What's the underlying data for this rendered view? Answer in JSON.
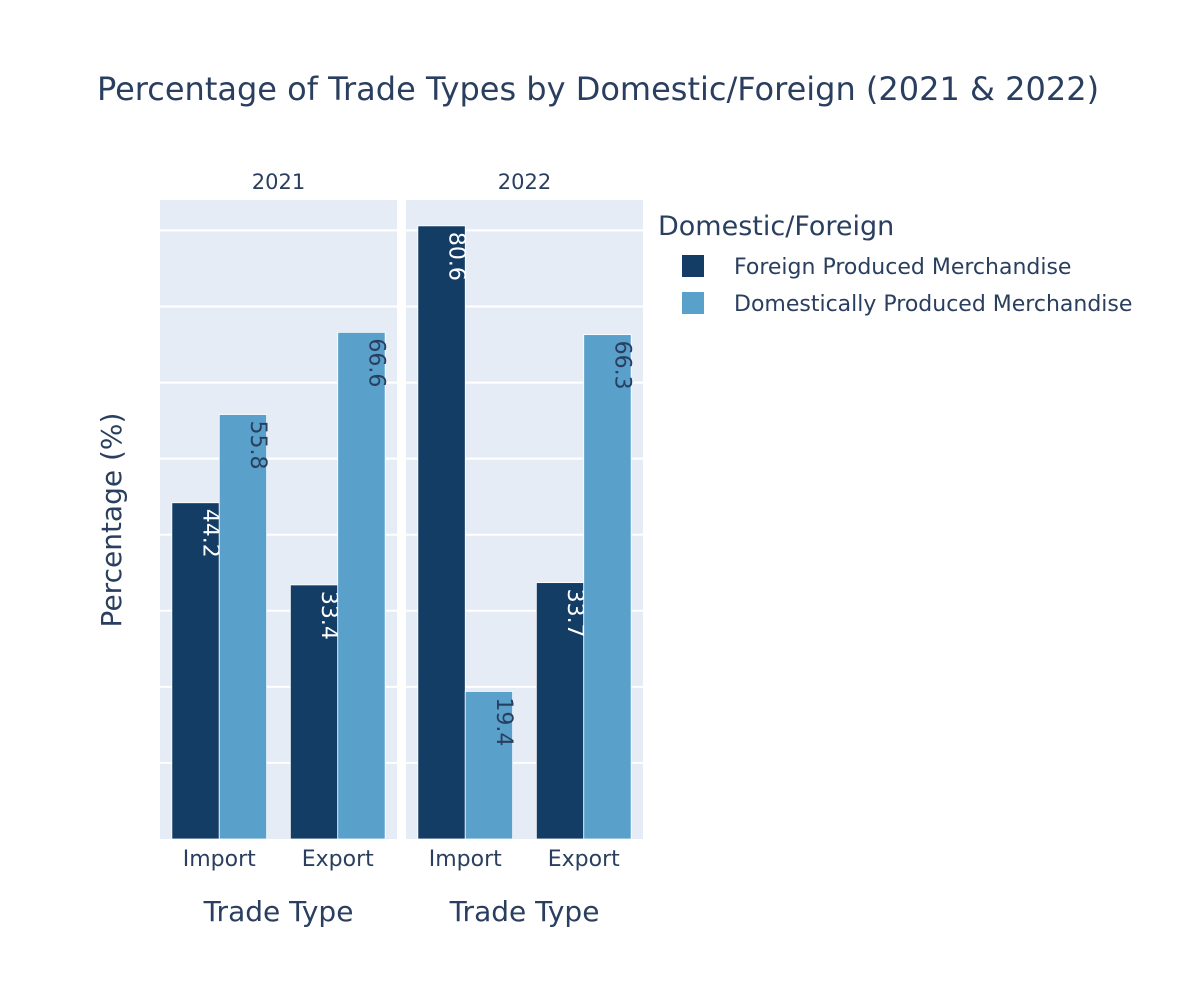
{
  "chart_data": {
    "type": "bar",
    "title": "Percentage of Trade Types by Domestic/Foreign (2021 & 2022)",
    "ylabel": "Percentage (%)",
    "ylim": [
      0,
      84
    ],
    "grid": true,
    "legend": {
      "title": "Domestic/Foreign",
      "placement": "top-right"
    },
    "facets": [
      {
        "name": "2021",
        "xlabel": "Trade Type",
        "categories": [
          "Import",
          "Export"
        ],
        "series": [
          {
            "name": "Foreign Produced Merchandise",
            "values": [
              44.2,
              33.4
            ]
          },
          {
            "name": "Domestically Produced Merchandise",
            "values": [
              55.8,
              66.6
            ]
          }
        ]
      },
      {
        "name": "2022",
        "xlabel": "Trade Type",
        "categories": [
          "Import",
          "Export"
        ],
        "series": [
          {
            "name": "Foreign Produced Merchandise",
            "values": [
              80.6,
              33.7
            ]
          },
          {
            "name": "Domestically Produced Merchandise",
            "values": [
              19.4,
              66.3
            ]
          }
        ]
      }
    ],
    "colors": {
      "Foreign Produced Merchandise": "#143d66",
      "Domestically Produced Merchandise": "#59a0cb",
      "plot_background": "#e5ecf6",
      "grid": "#ffffff",
      "label_on_dark": "#ffffff",
      "label_on_light": "#2a3f5f"
    }
  }
}
